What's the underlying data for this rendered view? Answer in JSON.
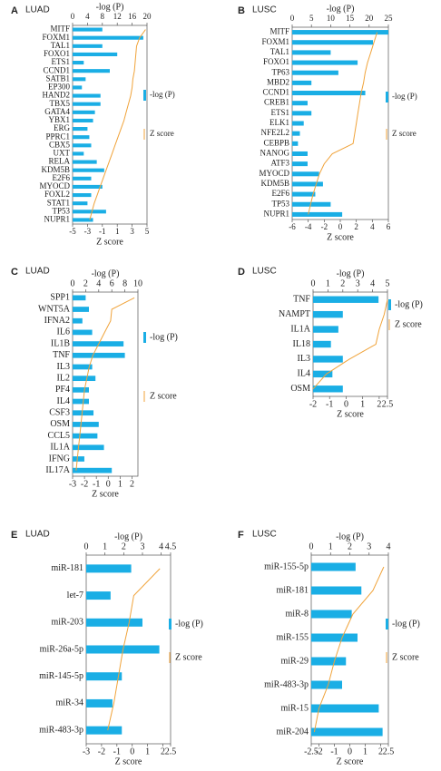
{
  "chart_data": [
    {
      "type": "bar_line",
      "panel": "A",
      "title": "LUAD",
      "xlabel": "-log (P)",
      "x2label": "Z score",
      "categories": [
        "MITF",
        "FOXM1",
        "TAL1",
        "FOXO1",
        "ETS1",
        "CCND1",
        "SATB1",
        "EP300",
        "HAND2",
        "TBX5",
        "GATA4",
        "YBX1",
        "ERG",
        "PPRC1",
        "CBX5",
        "UXT",
        "RELA",
        "KDM5B",
        "E2F6",
        "MYOCD",
        "FOXL2",
        "STAT1",
        "TP53",
        "NUPR1"
      ],
      "series": [
        {
          "name": "-log (P)",
          "color": "#1aaee5",
          "values": [
            8,
            19,
            8,
            12,
            3,
            10,
            3.5,
            2.5,
            7.5,
            7.5,
            6,
            5.5,
            4,
            4.5,
            5,
            3,
            6.5,
            8.5,
            5,
            8,
            5,
            4,
            9,
            5.5
          ]
        },
        {
          "name": "Z score",
          "color": "#f0a33a",
          "axis": "x2",
          "values": [
            4.8,
            4,
            3.6,
            3.5,
            3.4,
            3.3,
            3.1,
            3,
            2.8,
            2.5,
            2.2,
            1.9,
            1.5,
            1.1,
            0.7,
            0.3,
            -0.1,
            -0.5,
            -0.9,
            -1.3,
            -1.7,
            -2.1,
            -2.4,
            -2.7
          ]
        }
      ],
      "xlim": [
        0,
        20
      ],
      "xticks": [
        0,
        4,
        8,
        12,
        16,
        20
      ],
      "x2lim": [
        -5,
        5
      ],
      "x2ticks": [
        -5,
        -3,
        -1,
        1,
        3,
        5
      ]
    },
    {
      "type": "bar_line",
      "panel": "B",
      "title": "LUSC",
      "xlabel": "-log (P)",
      "x2label": "Z score",
      "categories": [
        "MITF",
        "FOXM1",
        "TAL1",
        "FOXO1",
        "TP63",
        "MBD2",
        "CCND1",
        "CREB1",
        "ETS1",
        "ELK1",
        "NFE2L2",
        "CEBPB",
        "NANOG",
        "ATF3",
        "MYOCD",
        "KDM5B",
        "E2F6",
        "TP53",
        "NUPR1"
      ],
      "series": [
        {
          "name": "-log (P)",
          "color": "#1aaee5",
          "values": [
            25,
            21,
            10,
            17,
            12,
            5,
            19,
            4,
            5,
            3,
            2,
            1.5,
            4,
            4,
            7,
            8,
            6,
            10,
            13
          ]
        },
        {
          "name": "Z score",
          "color": "#f0a33a",
          "axis": "x2",
          "values": [
            4.6,
            4.2,
            3.8,
            3.4,
            3.1,
            2.9,
            2.6,
            2.4,
            2.2,
            2,
            1.8,
            1.6,
            -1,
            -2,
            -2.6,
            -3,
            -3.4,
            -3.7,
            -4
          ]
        }
      ],
      "xlim": [
        0,
        25
      ],
      "xticks": [
        0,
        5,
        10,
        15,
        20,
        25
      ],
      "x2lim": [
        -6,
        6
      ],
      "x2ticks": [
        -6,
        -4,
        -2,
        0,
        2,
        4,
        6
      ]
    },
    {
      "type": "bar_line",
      "panel": "C",
      "title": "LUAD",
      "xlabel": "-log (P)",
      "x2label": "Z score",
      "categories": [
        "SPP1",
        "WNT5A",
        "IFNA2",
        "IL6",
        "IL1B",
        "TNF",
        "IL3",
        "IL2",
        "PF4",
        "IL4",
        "CSF3",
        "OSM",
        "CCL5",
        "IL1A",
        "IFNG",
        "IL17A"
      ],
      "series": [
        {
          "name": "-log (P)",
          "color": "#1aaee5",
          "values": [
            2,
            2.5,
            1.5,
            3,
            7.8,
            8,
            3,
            3.5,
            2.5,
            2.5,
            3.2,
            4,
            3.8,
            4.8,
            1.8,
            6
          ]
        },
        {
          "name": "Z score",
          "color": "#f0a33a",
          "axis": "x2",
          "values": [
            2.2,
            0.3,
            0.2,
            -0.3,
            -0.8,
            -1.3,
            -1.6,
            -1.8,
            -2,
            -2.1,
            -2.2,
            -2.3,
            -2.4,
            -2.5,
            -2.6,
            -2.7
          ]
        }
      ],
      "xlim": [
        0,
        10
      ],
      "xticks": [
        0,
        2,
        4,
        6,
        8,
        10
      ],
      "x2lim": [
        -3,
        2.5
      ],
      "x2ticks": [
        -3,
        -2,
        -1,
        0,
        1,
        2
      ]
    },
    {
      "type": "bar_line",
      "panel": "D",
      "title": "LUSC",
      "xlabel": "-log (P)",
      "x2label": "Z score",
      "categories": [
        "TNF",
        "NAMPT",
        "IL1A",
        "IL18",
        "IL3",
        "IL4",
        "OSM"
      ],
      "series": [
        {
          "name": "-log (P)",
          "color": "#1aaee5",
          "values": [
            4.4,
            2,
            1.7,
            1.2,
            2,
            1.3,
            2
          ]
        },
        {
          "name": "Z score",
          "color": "#f0a33a",
          "axis": "x2",
          "values": [
            2.5,
            2.3,
            2,
            1.8,
            0.2,
            -1.2,
            -2
          ]
        }
      ],
      "xlim": [
        0,
        5
      ],
      "xticks": [
        0,
        1,
        2,
        3,
        4,
        5
      ],
      "x2lim": [
        -2,
        2.5
      ],
      "x2ticks": [
        -2,
        -1,
        0,
        1,
        2,
        2.5
      ]
    },
    {
      "type": "bar_line",
      "panel": "E",
      "title": "LUAD",
      "xlabel": "-log (P)",
      "x2label": "Z score",
      "categories": [
        "miR-181",
        "let-7",
        "miR-203",
        "miR-26a-5p",
        "miR-145-5p",
        "miR-34",
        "miR-483-3p"
      ],
      "series": [
        {
          "name": "-log (P)",
          "color": "#1aaee5",
          "values": [
            2.4,
            1.3,
            3,
            3.9,
            1.9,
            1.4,
            1.9
          ]
        },
        {
          "name": "Z score",
          "color": "#f0a33a",
          "axis": "x2",
          "values": [
            1.8,
            0.1,
            -0.2,
            -0.6,
            -0.9,
            -1.2,
            -1.6
          ]
        }
      ],
      "xlim": [
        0,
        4.5
      ],
      "xticks": [
        0,
        1,
        2,
        3,
        4,
        4.5
      ],
      "x2lim": [
        -3,
        2.5
      ],
      "x2ticks": [
        -3,
        -2,
        -1,
        0,
        1,
        2,
        2.5
      ]
    },
    {
      "type": "bar_line",
      "panel": "F",
      "title": "LUSC",
      "xlabel": "-log (P)",
      "x2label": "Z score",
      "categories": [
        "miR-155-5p",
        "miR-181",
        "miR-8",
        "miR-155",
        "miR-29",
        "miR-483-3p",
        "miR-15",
        "miR-204"
      ],
      "series": [
        {
          "name": "-log (P)",
          "color": "#1aaee5",
          "values": [
            2.3,
            2.6,
            2.1,
            2.4,
            1.8,
            1.6,
            3.5,
            3.7
          ]
        },
        {
          "name": "Z score",
          "color": "#f0a33a",
          "axis": "x2",
          "values": [
            2.2,
            1.5,
            0.2,
            -0.5,
            -1,
            -1.4,
            -2,
            -2.3
          ]
        }
      ],
      "xlim": [
        0,
        4
      ],
      "xticks": [
        0,
        1,
        2,
        3,
        4
      ],
      "x2lim": [
        -2.5,
        2.5
      ],
      "x2ticks": [
        -2.5,
        -2,
        -1,
        0,
        1,
        2,
        2.5
      ]
    }
  ]
}
